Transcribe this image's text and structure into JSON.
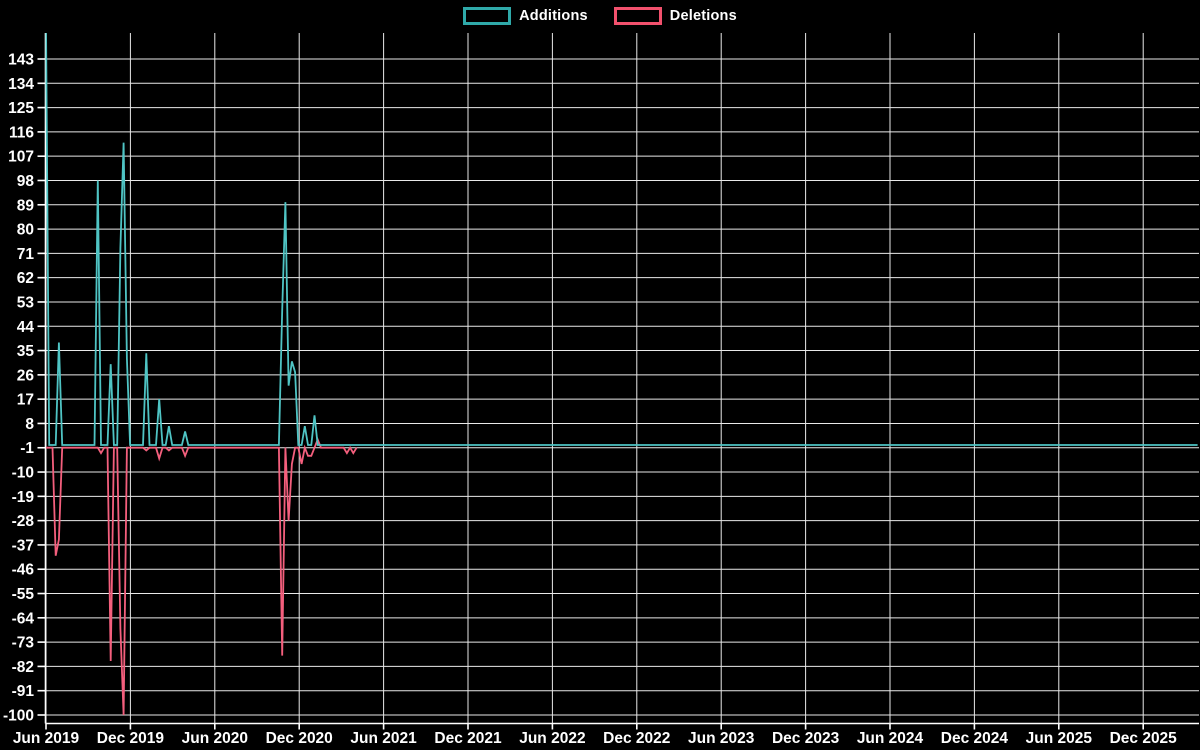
{
  "chart_data": {
    "type": "line",
    "title": "",
    "background_color": "#000000",
    "grid": {
      "on": true,
      "color": "#e9e9e9",
      "axis_color": "#ffffff",
      "text_color": "#ffffff"
    },
    "legend": {
      "position": "top-center",
      "items": [
        {
          "label": "Additions",
          "swatch_border_color": "#2fa9a9"
        },
        {
          "label": "Deletions",
          "swatch_border_color": "#f2516d"
        }
      ]
    },
    "y_axis": {
      "tick_values": [
        143,
        134,
        125,
        116,
        107,
        98,
        89,
        80,
        71,
        62,
        53,
        44,
        35,
        26,
        17,
        8,
        -1,
        -10,
        -19,
        -28,
        -37,
        -46,
        -55,
        -64,
        -73,
        -82,
        -91,
        -100
      ],
      "tick_step": -9,
      "visible_top_value": 152.6,
      "bottom_value": -103
    },
    "x_axis": {
      "tick_labels": [
        "Jun 2019",
        "Dec 2019",
        "Jun 2020",
        "Dec 2020",
        "Jun 2021",
        "Dec 2021",
        "Jun 2022",
        "Dec 2022",
        "Jun 2023",
        "Dec 2023",
        "Jun 2024",
        "Dec 2024",
        "Jun 2025",
        "Dec 2025"
      ],
      "weeks_per_tick_interval": 26.09,
      "start_label": "Jun 2019"
    },
    "series": [
      {
        "name": "Additions",
        "color": "#4fc4c4",
        "baseline_value": 0,
        "start_week": 0,
        "end_week": 356,
        "first_point_clipped_at_top": true,
        "spikes": [
          [
            0,
            155
          ],
          [
            4,
            38
          ],
          [
            16,
            98
          ],
          [
            20,
            30
          ],
          [
            23,
            73
          ],
          [
            24,
            112
          ],
          [
            25,
            32
          ],
          [
            31,
            34
          ],
          [
            35,
            17
          ],
          [
            38,
            7
          ],
          [
            43,
            5
          ],
          [
            73,
            50
          ],
          [
            74,
            90
          ],
          [
            75,
            22
          ],
          [
            76,
            31
          ],
          [
            77,
            27
          ],
          [
            80,
            7
          ],
          [
            83,
            11
          ]
        ]
      },
      {
        "name": "Deletions",
        "color": "#f45f7d",
        "baseline_value": -1,
        "start_week": 0,
        "end_week": 96,
        "spikes": [
          [
            3,
            -41
          ],
          [
            4,
            -35
          ],
          [
            17,
            -3
          ],
          [
            20,
            -80
          ],
          [
            23,
            -68
          ],
          [
            24,
            -100
          ],
          [
            31,
            -2
          ],
          [
            35,
            -5
          ],
          [
            38,
            -2
          ],
          [
            43,
            -4
          ],
          [
            73,
            -78
          ],
          [
            75,
            -28
          ],
          [
            76,
            -7
          ],
          [
            79,
            -7
          ],
          [
            81,
            -4
          ],
          [
            82,
            -4
          ],
          [
            84,
            2
          ],
          [
            93,
            -3
          ],
          [
            95,
            -3
          ]
        ]
      }
    ]
  }
}
